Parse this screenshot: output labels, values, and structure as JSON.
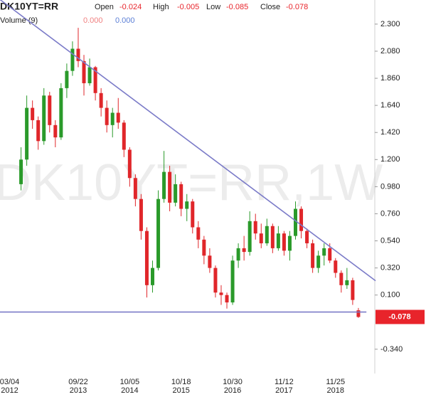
{
  "chart_data": {
    "type": "candlestick",
    "title": "DK10YT=RR",
    "watermark": "DK10YT=RR,1W",
    "ohlc_labels": [
      "Open",
      "High",
      "Low",
      "Close"
    ],
    "volume": {
      "label": "Volume (9)",
      "values": [
        "0.000",
        "0.000"
      ],
      "colors": [
        "#f08080",
        "#5b7fd6"
      ]
    },
    "categories": [
      "03/04 2012",
      null,
      null,
      null,
      null,
      null,
      null,
      null,
      null,
      null,
      null,
      null,
      "09/22 2013",
      null,
      null,
      null,
      null,
      null,
      null,
      null,
      null,
      "10/05 2014",
      null,
      null,
      null,
      null,
      null,
      null,
      null,
      null,
      "10/18 2015",
      null,
      null,
      null,
      null,
      null,
      null,
      null,
      null,
      "10/30 2016",
      null,
      null,
      null,
      null,
      null,
      null,
      null,
      null,
      "11/12 2017",
      null,
      null,
      null,
      null,
      null,
      null,
      null,
      null,
      "11/25 2018",
      null,
      null,
      null,
      null
    ],
    "open": [
      null,
      null,
      1.0,
      1.2,
      1.62,
      1.52,
      1.35,
      1.72,
      1.48,
      1.38,
      1.78,
      1.92,
      2.1,
      2.0,
      1.82,
      1.95,
      1.74,
      1.62,
      1.48,
      1.58,
      1.5,
      1.28,
      1.05,
      0.88,
      0.62,
      0.18,
      0.32,
      0.88,
      1.1,
      0.85,
      1.0,
      0.8,
      0.86,
      0.65,
      0.55,
      0.42,
      0.32,
      0.12,
      0.1,
      0.04,
      0.38,
      0.48,
      0.45,
      0.7,
      0.6,
      0.52,
      0.66,
      0.48,
      0.6,
      0.46,
      0.58,
      0.8,
      0.62,
      0.52,
      0.32,
      0.42,
      0.48,
      0.38,
      0.28,
      0.18,
      0.22,
      -0.024
    ],
    "high": [
      null,
      null,
      1.3,
      1.72,
      1.68,
      1.55,
      1.78,
      1.75,
      1.52,
      1.82,
      1.98,
      2.16,
      2.27,
      2.05,
      2.02,
      1.96,
      1.78,
      1.68,
      1.62,
      1.7,
      1.52,
      1.3,
      1.08,
      0.92,
      0.65,
      0.38,
      0.95,
      1.27,
      1.15,
      1.08,
      1.02,
      0.92,
      0.88,
      0.7,
      0.58,
      0.48,
      0.34,
      0.18,
      0.12,
      0.42,
      0.52,
      0.58,
      0.78,
      0.76,
      0.68,
      0.72,
      0.68,
      0.66,
      0.62,
      0.62,
      0.86,
      0.82,
      0.64,
      0.55,
      0.46,
      0.52,
      0.52,
      0.4,
      0.3,
      0.32,
      0.24,
      -0.005
    ],
    "low": [
      null,
      null,
      0.95,
      1.15,
      1.45,
      1.28,
      1.32,
      1.42,
      1.3,
      1.36,
      1.7,
      1.88,
      1.95,
      1.72,
      1.8,
      1.68,
      1.55,
      1.42,
      1.38,
      1.45,
      1.22,
      0.98,
      0.82,
      0.55,
      0.08,
      0.12,
      0.3,
      0.85,
      0.78,
      0.82,
      0.74,
      0.7,
      0.6,
      0.48,
      0.35,
      0.28,
      0.08,
      0.02,
      -0.01,
      0.02,
      0.32,
      0.38,
      0.42,
      0.55,
      0.48,
      0.5,
      0.44,
      0.46,
      0.42,
      0.38,
      0.55,
      0.56,
      0.48,
      0.28,
      0.28,
      0.34,
      0.36,
      0.24,
      0.12,
      0.15,
      0.02,
      -0.085
    ],
    "close": [
      null,
      null,
      1.2,
      1.62,
      1.52,
      1.35,
      1.72,
      1.48,
      1.38,
      1.78,
      1.92,
      2.1,
      2.0,
      1.82,
      1.95,
      1.74,
      1.62,
      1.48,
      1.58,
      1.5,
      1.28,
      1.05,
      0.88,
      0.62,
      0.18,
      0.32,
      0.88,
      1.1,
      0.85,
      1.0,
      0.8,
      0.86,
      0.65,
      0.55,
      0.42,
      0.32,
      0.12,
      0.1,
      0.04,
      0.38,
      0.48,
      0.45,
      0.7,
      0.6,
      0.52,
      0.66,
      0.48,
      0.6,
      0.46,
      0.58,
      0.8,
      0.62,
      0.52,
      0.32,
      0.42,
      0.48,
      0.38,
      0.28,
      0.18,
      0.22,
      0.06,
      -0.078
    ],
    "up_color": "#2a9a2a",
    "down_color": "#e0262a",
    "label_color": "#e8242b",
    "ylim": [
      -0.52,
      2.49
    ],
    "yticks": [
      {
        "value": 2.3,
        "label": "2.300"
      },
      {
        "value": 2.08,
        "label": "2.080"
      },
      {
        "value": 1.86,
        "label": "1.860"
      },
      {
        "value": 1.64,
        "label": "1.640"
      },
      {
        "value": 1.42,
        "label": "1.420"
      },
      {
        "value": 1.2,
        "label": "1.200"
      },
      {
        "value": 0.98,
        "label": "0.980"
      },
      {
        "value": 0.76,
        "label": "0.760"
      },
      {
        "value": 0.54,
        "label": "0.540"
      },
      {
        "value": 0.32,
        "label": "0.320"
      },
      {
        "value": 0.1,
        "label": "0.100"
      },
      {
        "value": -0.34,
        "label": "-0.340"
      }
    ],
    "trendlines": {
      "color": "#7b7bc8",
      "lines": [
        [
          [
            -1.7,
            2.5
          ],
          [
            64,
            0.216
          ]
        ],
        [
          [
            -1.7,
            -0.038
          ],
          [
            62.4,
            -0.038
          ]
        ]
      ]
    }
  }
}
